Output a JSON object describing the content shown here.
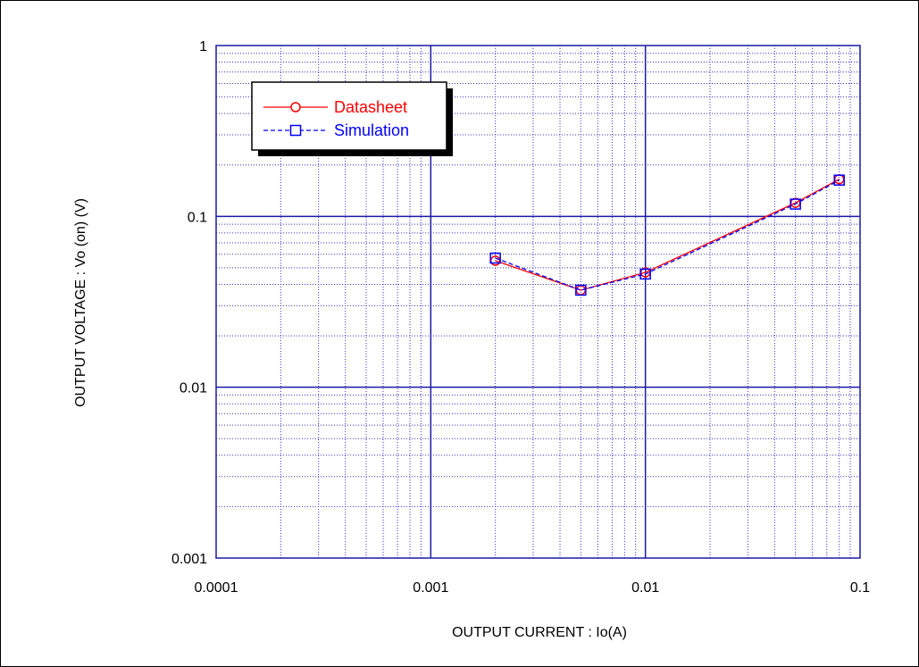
{
  "chart_data": {
    "type": "line",
    "title": "",
    "xlabel": "OUTPUT CURRENT : Io(A)",
    "ylabel": "OUTPUT VOLTAGE : Vo (on)  (V)",
    "x_scale": "log",
    "y_scale": "log",
    "xlim": [
      0.0001,
      0.1
    ],
    "ylim": [
      0.001,
      1
    ],
    "x_ticks": [
      "0.0001",
      "0.001",
      "0.01",
      "0.1"
    ],
    "y_ticks": [
      "0.001",
      "0.01",
      "0.1",
      "1"
    ],
    "grid": true,
    "legend_position": "top-left",
    "series": [
      {
        "name": "Datasheet",
        "color": "#ff0000",
        "line_style": "solid",
        "marker": "circle",
        "x": [
          0.002,
          0.005,
          0.01,
          0.05,
          0.08
        ],
        "y": [
          0.055,
          0.037,
          0.047,
          0.12,
          0.165
        ]
      },
      {
        "name": "Simulation",
        "color": "#0000ff",
        "line_style": "dashed",
        "marker": "square",
        "x": [
          0.002,
          0.005,
          0.01,
          0.05,
          0.08
        ],
        "y": [
          0.057,
          0.037,
          0.046,
          0.118,
          0.163
        ]
      }
    ],
    "colors": {
      "axes": "#1a1aa6",
      "grid_minor": "#3333cc"
    }
  }
}
